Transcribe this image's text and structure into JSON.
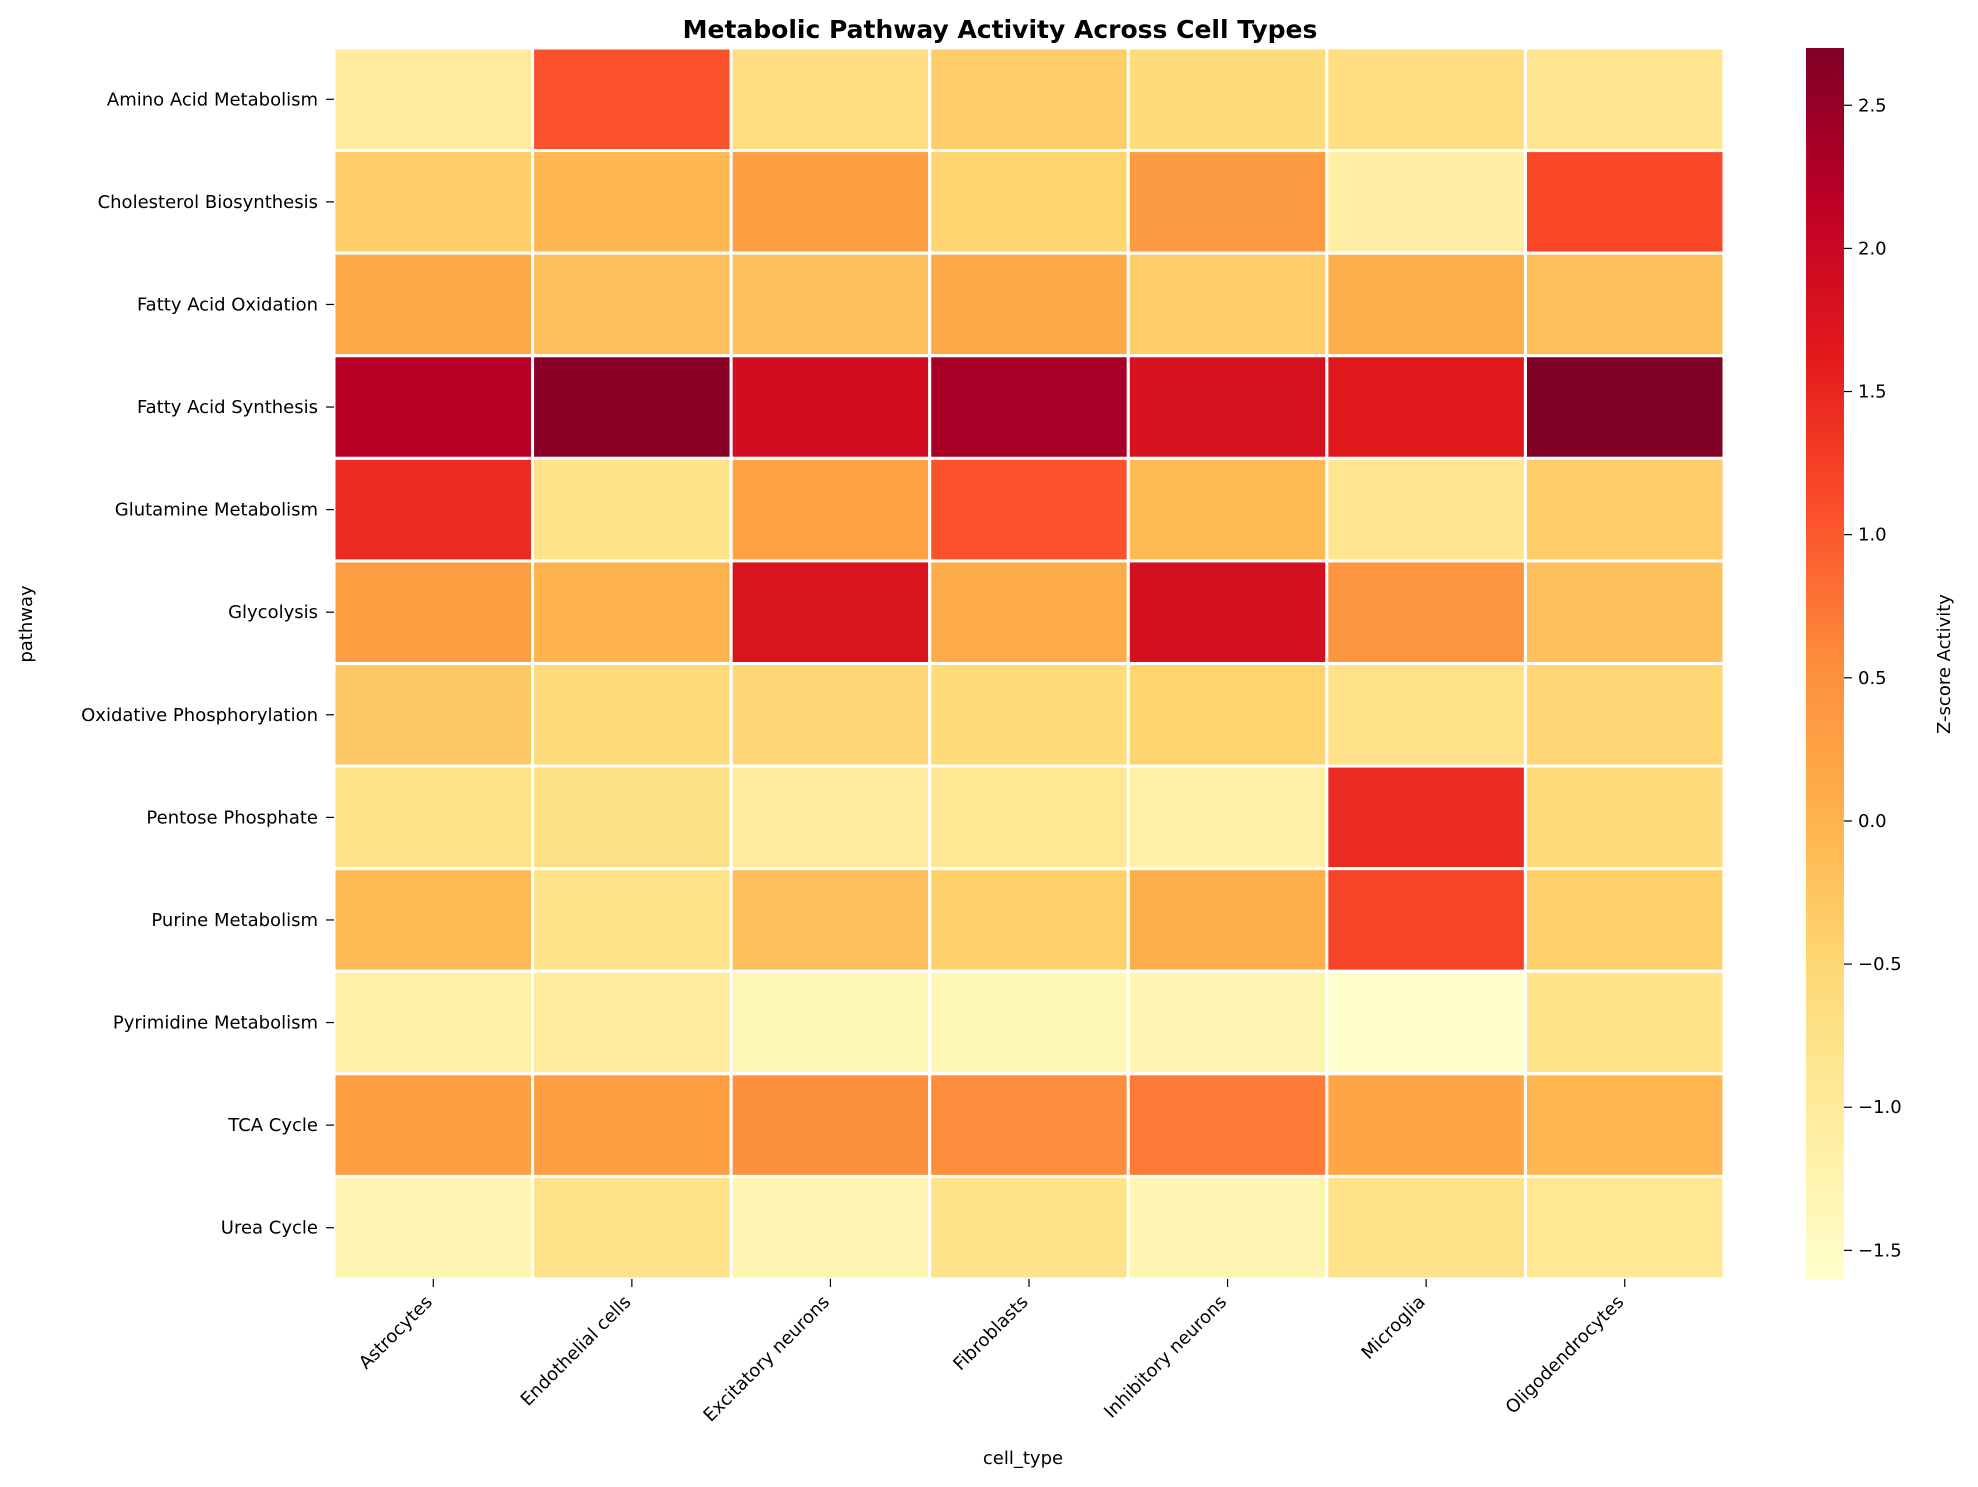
{
  "chart_data": {
    "type": "heatmap",
    "title": "Metabolic Pathway Activity Across Cell Types",
    "xlabel": "cell_type",
    "ylabel": "pathway",
    "x_categories": [
      "Astrocytes",
      "Endothelial cells",
      "Excitatory neurons",
      "Fibroblasts",
      "Inhibitory neurons",
      "Microglia",
      "Oligodendrocytes"
    ],
    "y_categories": [
      "Amino Acid Metabolism",
      "Cholesterol Biosynthesis",
      "Fatty Acid Oxidation",
      "Fatty Acid Synthesis",
      "Glutamine Metabolism",
      "Glycolysis",
      "Oxidative Phosphorylation",
      "Pentose Phosphate",
      "Purine Metabolism",
      "Pyrimidine Metabolism",
      "TCA Cycle",
      "Urea Cycle"
    ],
    "values": [
      [
        -1.0,
        1.05,
        -0.65,
        -0.35,
        -0.6,
        -0.65,
        -0.85
      ],
      [
        -0.35,
        -0.05,
        0.3,
        -0.45,
        0.35,
        -1.1,
        1.15
      ],
      [
        0.15,
        -0.15,
        -0.2,
        0.15,
        -0.35,
        0.05,
        -0.15
      ],
      [
        2.2,
        2.6,
        1.9,
        2.35,
        1.8,
        1.65,
        2.7
      ],
      [
        1.45,
        -0.8,
        0.25,
        1.05,
        -0.1,
        -0.85,
        -0.35
      ],
      [
        0.3,
        0.0,
        1.75,
        0.1,
        1.85,
        0.45,
        -0.2
      ],
      [
        -0.3,
        -0.6,
        -0.5,
        -0.6,
        -0.45,
        -0.75,
        -0.5
      ],
      [
        -0.75,
        -0.7,
        -1.0,
        -0.9,
        -1.15,
        1.45,
        -0.55
      ],
      [
        -0.1,
        -0.8,
        -0.15,
        -0.4,
        0.05,
        1.2,
        -0.4
      ],
      [
        -1.15,
        -1.0,
        -1.35,
        -1.35,
        -1.3,
        -1.6,
        -0.8
      ],
      [
        0.3,
        0.3,
        0.5,
        0.55,
        0.7,
        0.2,
        -0.05
      ],
      [
        -1.3,
        -0.75,
        -1.3,
        -0.8,
        -1.3,
        -0.75,
        -0.9
      ]
    ],
    "vmin": -1.6,
    "vmax": 2.7,
    "colormap": "YlOrRd",
    "colormap_stops": [
      "#ffffcc",
      "#ffeda0",
      "#fed976",
      "#feb24c",
      "#fd8d3c",
      "#fc4e2a",
      "#e31a1c",
      "#bd0026",
      "#800026"
    ],
    "cell_border_color": "#ffffff",
    "colorbar": {
      "label": "Z-score Activity",
      "ticks": [
        2.5,
        2.0,
        1.5,
        1.0,
        0.5,
        0.0,
        -0.5,
        -1.0,
        -1.5
      ],
      "tick_labels": [
        "2.5",
        "2.0",
        "1.5",
        "1.0",
        "0.5",
        "0.0",
        "−0.5",
        "−1.0",
        "−1.5"
      ]
    }
  }
}
